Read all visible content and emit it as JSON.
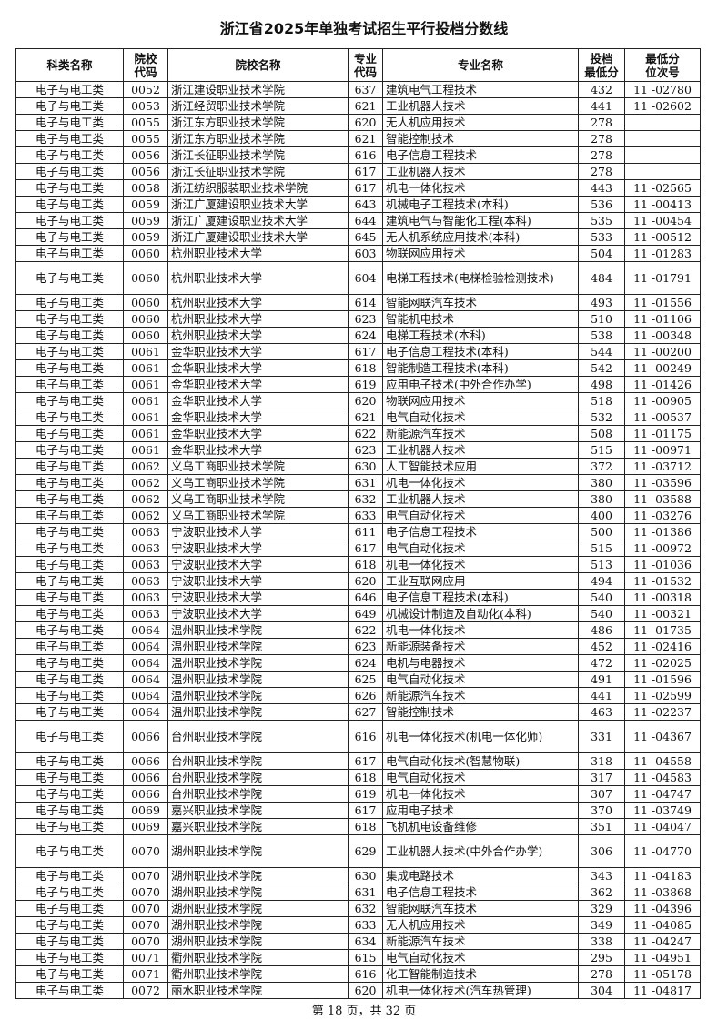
{
  "title": "浙江省2025年单独考试招生平行投档分数线",
  "headers": [
    "科类名称",
    "院校代码",
    "院校名称",
    "专业代码",
    "专业名称",
    "投档最低分",
    "最低分位次号"
  ],
  "rows": [
    [
      "电子与电工类",
      "0052",
      "浙江建设职业技术学院",
      "637",
      "建筑电气工程技术",
      "432",
      "11 -02780"
    ],
    [
      "电子与电工类",
      "0053",
      "浙江经贸职业技术学院",
      "621",
      "工业机器人技术",
      "441",
      "11 -02602"
    ],
    [
      "电子与电工类",
      "0055",
      "浙江东方职业技术学院",
      "620",
      "无人机应用技术",
      "278",
      ""
    ],
    [
      "电子与电工类",
      "0055",
      "浙江东方职业技术学院",
      "621",
      "智能控制技术",
      "278",
      ""
    ],
    [
      "电子与电工类",
      "0056",
      "浙江长征职业技术学院",
      "616",
      "电子信息工程技术",
      "278",
      ""
    ],
    [
      "电子与电工类",
      "0056",
      "浙江长征职业技术学院",
      "617",
      "工业机器人技术",
      "278",
      ""
    ],
    [
      "电子与电工类",
      "0058",
      "浙江纺织服装职业技术学院",
      "617",
      "机电一体化技术",
      "443",
      "11 -02565"
    ],
    [
      "电子与电工类",
      "0059",
      "浙江广厦建设职业技术大学",
      "643",
      "机械电子工程技术(本科)",
      "536",
      "11 -00413"
    ],
    [
      "电子与电工类",
      "0059",
      "浙江广厦建设职业技术大学",
      "644",
      "建筑电气与智能化工程(本科)",
      "535",
      "11 -00454"
    ],
    [
      "电子与电工类",
      "0059",
      "浙江广厦建设职业技术大学",
      "645",
      "无人机系统应用技术(本科)",
      "533",
      "11 -00512"
    ],
    [
      "电子与电工类",
      "0060",
      "杭州职业技术大学",
      "603",
      "物联网应用技术",
      "504",
      "11 -01283"
    ],
    [
      "电子与电工类",
      "0060",
      "杭州职业技术大学",
      "604",
      "电梯工程技术(电梯检验检测技术)",
      "484",
      "11 -01791"
    ],
    [
      "电子与电工类",
      "0060",
      "杭州职业技术大学",
      "614",
      "智能网联汽车技术",
      "493",
      "11 -01556"
    ],
    [
      "电子与电工类",
      "0060",
      "杭州职业技术大学",
      "623",
      "智能机电技术",
      "510",
      "11 -01106"
    ],
    [
      "电子与电工类",
      "0060",
      "杭州职业技术大学",
      "624",
      "电梯工程技术(本科)",
      "538",
      "11 -00348"
    ],
    [
      "电子与电工类",
      "0061",
      "金华职业技术大学",
      "617",
      "电子信息工程技术(本科)",
      "544",
      "11 -00200"
    ],
    [
      "电子与电工类",
      "0061",
      "金华职业技术大学",
      "618",
      "智能制造工程技术(本科)",
      "542",
      "11 -00249"
    ],
    [
      "电子与电工类",
      "0061",
      "金华职业技术大学",
      "619",
      "应用电子技术(中外合作办学)",
      "498",
      "11 -01426"
    ],
    [
      "电子与电工类",
      "0061",
      "金华职业技术大学",
      "620",
      "物联网应用技术",
      "518",
      "11 -00905"
    ],
    [
      "电子与电工类",
      "0061",
      "金华职业技术大学",
      "621",
      "电气自动化技术",
      "532",
      "11 -00537"
    ],
    [
      "电子与电工类",
      "0061",
      "金华职业技术大学",
      "622",
      "新能源汽车技术",
      "508",
      "11 -01175"
    ],
    [
      "电子与电工类",
      "0061",
      "金华职业技术大学",
      "623",
      "工业机器人技术",
      "515",
      "11 -00971"
    ],
    [
      "电子与电工类",
      "0062",
      "义乌工商职业技术学院",
      "630",
      "人工智能技术应用",
      "372",
      "11 -03712"
    ],
    [
      "电子与电工类",
      "0062",
      "义乌工商职业技术学院",
      "631",
      "机电一体化技术",
      "380",
      "11 -03596"
    ],
    [
      "电子与电工类",
      "0062",
      "义乌工商职业技术学院",
      "632",
      "工业机器人技术",
      "380",
      "11 -03588"
    ],
    [
      "电子与电工类",
      "0062",
      "义乌工商职业技术学院",
      "633",
      "电气自动化技术",
      "400",
      "11 -03276"
    ],
    [
      "电子与电工类",
      "0063",
      "宁波职业技术大学",
      "611",
      "电子信息工程技术",
      "500",
      "11 -01386"
    ],
    [
      "电子与电工类",
      "0063",
      "宁波职业技术大学",
      "617",
      "电气自动化技术",
      "515",
      "11 -00972"
    ],
    [
      "电子与电工类",
      "0063",
      "宁波职业技术大学",
      "618",
      "机电一体化技术",
      "513",
      "11 -01036"
    ],
    [
      "电子与电工类",
      "0063",
      "宁波职业技术大学",
      "620",
      "工业互联网应用",
      "494",
      "11 -01532"
    ],
    [
      "电子与电工类",
      "0063",
      "宁波职业技术大学",
      "646",
      "电子信息工程技术(本科)",
      "540",
      "11 -00318"
    ],
    [
      "电子与电工类",
      "0063",
      "宁波职业技术大学",
      "649",
      "机械设计制造及自动化(本科)",
      "540",
      "11 -00321"
    ],
    [
      "电子与电工类",
      "0064",
      "温州职业技术学院",
      "622",
      "机电一体化技术",
      "486",
      "11 -01735"
    ],
    [
      "电子与电工类",
      "0064",
      "温州职业技术学院",
      "623",
      "新能源装备技术",
      "452",
      "11 -02416"
    ],
    [
      "电子与电工类",
      "0064",
      "温州职业技术学院",
      "624",
      "电机与电器技术",
      "472",
      "11 -02025"
    ],
    [
      "电子与电工类",
      "0064",
      "温州职业技术学院",
      "625",
      "电气自动化技术",
      "491",
      "11 -01596"
    ],
    [
      "电子与电工类",
      "0064",
      "温州职业技术学院",
      "626",
      "新能源汽车技术",
      "441",
      "11 -02599"
    ],
    [
      "电子与电工类",
      "0064",
      "温州职业技术学院",
      "627",
      "智能控制技术",
      "463",
      "11 -02237"
    ],
    [
      "电子与电工类",
      "0066",
      "台州职业技术学院",
      "616",
      "机电一体化技术(机电一体化师)",
      "331",
      "11 -04367"
    ],
    [
      "电子与电工类",
      "0066",
      "台州职业技术学院",
      "617",
      "电气自动化技术(智慧物联)",
      "318",
      "11 -04558"
    ],
    [
      "电子与电工类",
      "0066",
      "台州职业技术学院",
      "618",
      "电气自动化技术",
      "317",
      "11 -04583"
    ],
    [
      "电子与电工类",
      "0066",
      "台州职业技术学院",
      "619",
      "机电一体化技术",
      "307",
      "11 -04747"
    ],
    [
      "电子与电工类",
      "0069",
      "嘉兴职业技术学院",
      "617",
      "应用电子技术",
      "370",
      "11 -03749"
    ],
    [
      "电子与电工类",
      "0069",
      "嘉兴职业技术学院",
      "618",
      "飞机机电设备维修",
      "351",
      "11 -04047"
    ],
    [
      "电子与电工类",
      "0070",
      "湖州职业技术学院",
      "629",
      "工业机器人技术(中外合作办学)",
      "306",
      "11 -04770"
    ],
    [
      "电子与电工类",
      "0070",
      "湖州职业技术学院",
      "630",
      "集成电路技术",
      "343",
      "11 -04183"
    ],
    [
      "电子与电工类",
      "0070",
      "湖州职业技术学院",
      "631",
      "电子信息工程技术",
      "362",
      "11 -03868"
    ],
    [
      "电子与电工类",
      "0070",
      "湖州职业技术学院",
      "632",
      "智能网联汽车技术",
      "329",
      "11 -04396"
    ],
    [
      "电子与电工类",
      "0070",
      "湖州职业技术学院",
      "633",
      "无人机应用技术",
      "349",
      "11 -04085"
    ],
    [
      "电子与电工类",
      "0070",
      "湖州职业技术学院",
      "634",
      "新能源汽车技术",
      "338",
      "11 -04247"
    ],
    [
      "电子与电工类",
      "0071",
      "衢州职业技术学院",
      "615",
      "电气自动化技术",
      "295",
      "11 -04951"
    ],
    [
      "电子与电工类",
      "0071",
      "衢州职业技术学院",
      "616",
      "化工智能制造技术",
      "278",
      "11 -05178"
    ],
    [
      "电子与电工类",
      "0072",
      "丽水职业技术学院",
      "620",
      "机电一体化技术(汽车热管理)",
      "304",
      "11 -04817"
    ]
  ],
  "footer": "第 18 页，共 32 页"
}
